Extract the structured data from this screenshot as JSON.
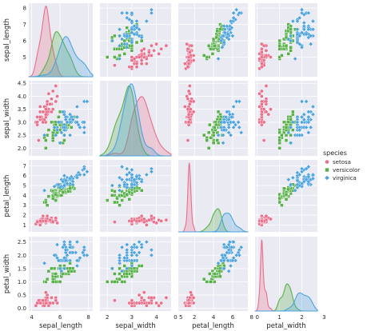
{
  "chart_data": {
    "type": "pairplot",
    "variables": [
      "sepal_length",
      "sepal_width",
      "petal_length",
      "petal_width"
    ],
    "hue": "species",
    "legend": {
      "title": "species",
      "placement": "right",
      "entries": [
        "setosa",
        "versicolor",
        "virginica"
      ]
    },
    "colors": {
      "setosa": "#e8708b",
      "versicolor": "#59b04a",
      "virginica": "#4ca3dd",
      "panel_bg": "#eaeaf2",
      "grid": "#ffffff"
    },
    "axes": {
      "sepal_length": {
        "range": [
          3.8,
          8.3
        ],
        "ticks": [
          4,
          6,
          8
        ],
        "ticks_y": [
          5,
          6,
          7,
          8
        ]
      },
      "sepal_width": {
        "range": [
          1.7,
          4.6
        ],
        "ticks": [
          2,
          3,
          4,
          5
        ],
        "ticks_y": [
          2.0,
          2.5,
          3.0,
          3.5,
          4.0,
          4.5
        ]
      },
      "petal_length": {
        "range": [
          0.3,
          7.6
        ],
        "ticks": [
          0,
          2,
          4,
          6,
          8
        ],
        "ticks_y": [
          1,
          2,
          3,
          4,
          5,
          6,
          7
        ]
      },
      "petal_width": {
        "range": [
          -0.1,
          2.7
        ],
        "ticks": [
          0,
          1,
          2,
          3
        ],
        "ticks_y": [
          0.0,
          0.5,
          1.0,
          1.5,
          2.0,
          2.5
        ]
      }
    },
    "diagonal": "kde",
    "off_diagonal": "scatter",
    "species_stats": {
      "setosa": {
        "mean": [
          5.01,
          3.43,
          1.46,
          0.25
        ],
        "sd": [
          0.35,
          0.38,
          0.17,
          0.1
        ]
      },
      "versicolor": {
        "mean": [
          5.94,
          2.77,
          4.26,
          1.33
        ],
        "sd": [
          0.52,
          0.31,
          0.47,
          0.2
        ]
      },
      "virginica": {
        "mean": [
          6.59,
          2.97,
          5.55,
          2.03
        ],
        "sd": [
          0.64,
          0.32,
          0.55,
          0.27
        ]
      }
    },
    "points": {
      "setosa": [
        [
          5.1,
          3.5,
          1.4,
          0.2
        ],
        [
          4.9,
          3.0,
          1.4,
          0.2
        ],
        [
          4.7,
          3.2,
          1.3,
          0.2
        ],
        [
          4.6,
          3.1,
          1.5,
          0.2
        ],
        [
          5.0,
          3.6,
          1.4,
          0.2
        ],
        [
          5.4,
          3.9,
          1.7,
          0.4
        ],
        [
          4.6,
          3.4,
          1.4,
          0.3
        ],
        [
          5.0,
          3.4,
          1.5,
          0.2
        ],
        [
          4.4,
          2.9,
          1.4,
          0.2
        ],
        [
          4.9,
          3.1,
          1.5,
          0.1
        ],
        [
          5.4,
          3.7,
          1.5,
          0.2
        ],
        [
          4.8,
          3.4,
          1.6,
          0.2
        ],
        [
          4.8,
          3.0,
          1.4,
          0.1
        ],
        [
          4.3,
          3.0,
          1.1,
          0.1
        ],
        [
          5.8,
          4.0,
          1.2,
          0.2
        ],
        [
          5.7,
          4.4,
          1.5,
          0.4
        ],
        [
          5.4,
          3.9,
          1.3,
          0.4
        ],
        [
          5.1,
          3.5,
          1.4,
          0.3
        ],
        [
          5.7,
          3.8,
          1.7,
          0.3
        ],
        [
          5.1,
          3.8,
          1.5,
          0.3
        ],
        [
          5.4,
          3.4,
          1.7,
          0.2
        ],
        [
          5.1,
          3.7,
          1.5,
          0.4
        ],
        [
          4.6,
          3.6,
          1.0,
          0.2
        ],
        [
          5.1,
          3.3,
          1.7,
          0.5
        ],
        [
          4.8,
          3.4,
          1.9,
          0.2
        ],
        [
          5.0,
          3.0,
          1.6,
          0.2
        ],
        [
          5.0,
          3.4,
          1.6,
          0.4
        ],
        [
          5.2,
          3.5,
          1.5,
          0.2
        ],
        [
          5.2,
          3.4,
          1.4,
          0.2
        ],
        [
          4.7,
          3.2,
          1.6,
          0.2
        ],
        [
          4.8,
          3.1,
          1.6,
          0.2
        ],
        [
          5.4,
          3.4,
          1.5,
          0.4
        ],
        [
          5.2,
          4.1,
          1.5,
          0.1
        ],
        [
          5.5,
          4.2,
          1.4,
          0.2
        ],
        [
          4.9,
          3.1,
          1.5,
          0.2
        ],
        [
          5.0,
          3.2,
          1.2,
          0.2
        ],
        [
          5.5,
          3.5,
          1.3,
          0.2
        ],
        [
          4.9,
          3.6,
          1.4,
          0.1
        ],
        [
          4.4,
          3.0,
          1.3,
          0.2
        ],
        [
          5.1,
          3.4,
          1.5,
          0.2
        ],
        [
          5.0,
          3.5,
          1.3,
          0.3
        ],
        [
          4.5,
          2.3,
          1.3,
          0.3
        ],
        [
          4.4,
          3.2,
          1.3,
          0.2
        ],
        [
          5.0,
          3.5,
          1.6,
          0.6
        ],
        [
          5.1,
          3.8,
          1.9,
          0.4
        ],
        [
          4.8,
          3.0,
          1.4,
          0.3
        ],
        [
          5.1,
          3.8,
          1.6,
          0.2
        ],
        [
          4.6,
          3.2,
          1.4,
          0.2
        ],
        [
          5.3,
          3.7,
          1.5,
          0.2
        ],
        [
          5.0,
          3.3,
          1.4,
          0.2
        ]
      ],
      "versicolor": [
        [
          7.0,
          3.2,
          4.7,
          1.4
        ],
        [
          6.4,
          3.2,
          4.5,
          1.5
        ],
        [
          6.9,
          3.1,
          4.9,
          1.5
        ],
        [
          5.5,
          2.3,
          4.0,
          1.3
        ],
        [
          6.5,
          2.8,
          4.6,
          1.5
        ],
        [
          5.7,
          2.8,
          4.5,
          1.3
        ],
        [
          6.3,
          3.3,
          4.7,
          1.6
        ],
        [
          4.9,
          2.4,
          3.3,
          1.0
        ],
        [
          6.6,
          2.9,
          4.6,
          1.3
        ],
        [
          5.2,
          2.7,
          3.9,
          1.4
        ],
        [
          5.0,
          2.0,
          3.5,
          1.0
        ],
        [
          5.9,
          3.0,
          4.2,
          1.5
        ],
        [
          6.0,
          2.2,
          4.0,
          1.0
        ],
        [
          6.1,
          2.9,
          4.7,
          1.4
        ],
        [
          5.6,
          2.9,
          3.6,
          1.3
        ],
        [
          6.7,
          3.1,
          4.4,
          1.4
        ],
        [
          5.6,
          3.0,
          4.5,
          1.5
        ],
        [
          5.8,
          2.7,
          4.1,
          1.0
        ],
        [
          6.2,
          2.2,
          4.5,
          1.5
        ],
        [
          5.6,
          2.5,
          3.9,
          1.1
        ],
        [
          5.9,
          3.2,
          4.8,
          1.8
        ],
        [
          6.1,
          2.8,
          4.0,
          1.3
        ],
        [
          6.3,
          2.5,
          4.9,
          1.5
        ],
        [
          6.1,
          2.8,
          4.7,
          1.2
        ],
        [
          6.4,
          2.9,
          4.3,
          1.3
        ],
        [
          6.6,
          3.0,
          4.4,
          1.4
        ],
        [
          6.8,
          2.8,
          4.8,
          1.4
        ],
        [
          6.7,
          3.0,
          5.0,
          1.7
        ],
        [
          6.0,
          2.9,
          4.5,
          1.5
        ],
        [
          5.7,
          2.6,
          3.5,
          1.0
        ],
        [
          5.5,
          2.4,
          3.8,
          1.1
        ],
        [
          5.5,
          2.4,
          3.7,
          1.0
        ],
        [
          5.8,
          2.7,
          3.9,
          1.2
        ],
        [
          6.0,
          2.7,
          5.1,
          1.6
        ],
        [
          5.4,
          3.0,
          4.5,
          1.5
        ],
        [
          6.0,
          3.4,
          4.5,
          1.6
        ],
        [
          6.7,
          3.1,
          4.7,
          1.5
        ],
        [
          6.3,
          2.3,
          4.4,
          1.3
        ],
        [
          5.6,
          3.0,
          4.1,
          1.3
        ],
        [
          5.5,
          2.5,
          4.0,
          1.3
        ],
        [
          5.5,
          2.6,
          4.4,
          1.2
        ],
        [
          6.1,
          3.0,
          4.6,
          1.4
        ],
        [
          5.8,
          2.6,
          4.0,
          1.2
        ],
        [
          5.0,
          2.3,
          3.3,
          1.0
        ],
        [
          5.6,
          2.7,
          4.2,
          1.3
        ],
        [
          5.7,
          3.0,
          4.2,
          1.2
        ],
        [
          5.7,
          2.9,
          4.2,
          1.3
        ],
        [
          6.2,
          2.9,
          4.3,
          1.3
        ],
        [
          5.1,
          2.5,
          3.0,
          1.1
        ],
        [
          5.7,
          2.8,
          4.1,
          1.3
        ]
      ],
      "virginica": [
        [
          6.3,
          3.3,
          6.0,
          2.5
        ],
        [
          5.8,
          2.7,
          5.1,
          1.9
        ],
        [
          7.1,
          3.0,
          5.9,
          2.1
        ],
        [
          6.3,
          2.9,
          5.6,
          1.8
        ],
        [
          6.5,
          3.0,
          5.8,
          2.2
        ],
        [
          7.6,
          3.0,
          6.6,
          2.1
        ],
        [
          4.9,
          2.5,
          4.5,
          1.7
        ],
        [
          7.3,
          2.9,
          6.3,
          1.8
        ],
        [
          6.7,
          2.5,
          5.8,
          1.8
        ],
        [
          7.2,
          3.6,
          6.1,
          2.5
        ],
        [
          6.5,
          3.2,
          5.1,
          2.0
        ],
        [
          6.4,
          2.7,
          5.3,
          1.9
        ],
        [
          6.8,
          3.0,
          5.5,
          2.1
        ],
        [
          5.7,
          2.5,
          5.0,
          2.0
        ],
        [
          5.8,
          2.8,
          5.1,
          2.4
        ],
        [
          6.4,
          3.2,
          5.3,
          2.3
        ],
        [
          6.5,
          3.0,
          5.5,
          1.8
        ],
        [
          7.7,
          3.8,
          6.7,
          2.2
        ],
        [
          7.7,
          2.6,
          6.9,
          2.3
        ],
        [
          6.0,
          2.2,
          5.0,
          1.5
        ],
        [
          6.9,
          3.2,
          5.7,
          2.3
        ],
        [
          5.6,
          2.8,
          4.9,
          2.0
        ],
        [
          7.7,
          2.8,
          6.7,
          2.0
        ],
        [
          6.3,
          2.7,
          4.9,
          1.8
        ],
        [
          6.7,
          3.3,
          5.7,
          2.1
        ],
        [
          7.2,
          3.2,
          6.0,
          1.8
        ],
        [
          6.2,
          2.8,
          4.8,
          1.8
        ],
        [
          6.1,
          3.0,
          4.9,
          1.8
        ],
        [
          6.4,
          2.8,
          5.6,
          2.1
        ],
        [
          7.2,
          3.0,
          5.8,
          1.6
        ],
        [
          7.4,
          2.8,
          6.1,
          1.9
        ],
        [
          7.9,
          3.8,
          6.4,
          2.0
        ],
        [
          6.4,
          2.8,
          5.6,
          2.2
        ],
        [
          6.3,
          2.8,
          5.1,
          1.5
        ],
        [
          6.1,
          2.6,
          5.6,
          1.4
        ],
        [
          7.7,
          3.0,
          6.1,
          2.3
        ],
        [
          6.3,
          3.4,
          5.6,
          2.4
        ],
        [
          6.4,
          3.1,
          5.5,
          1.8
        ],
        [
          6.0,
          3.0,
          4.8,
          1.8
        ],
        [
          6.9,
          3.1,
          5.4,
          2.1
        ],
        [
          6.7,
          3.1,
          5.6,
          2.4
        ],
        [
          6.9,
          3.1,
          5.1,
          2.3
        ],
        [
          5.8,
          2.7,
          5.1,
          1.9
        ],
        [
          6.8,
          3.2,
          5.9,
          2.3
        ],
        [
          6.7,
          3.3,
          5.7,
          2.5
        ],
        [
          6.7,
          3.0,
          5.2,
          2.3
        ],
        [
          6.3,
          2.5,
          5.0,
          1.9
        ],
        [
          6.5,
          3.0,
          5.2,
          2.0
        ],
        [
          6.2,
          3.4,
          5.4,
          2.3
        ],
        [
          5.9,
          3.0,
          5.1,
          1.8
        ]
      ]
    }
  }
}
